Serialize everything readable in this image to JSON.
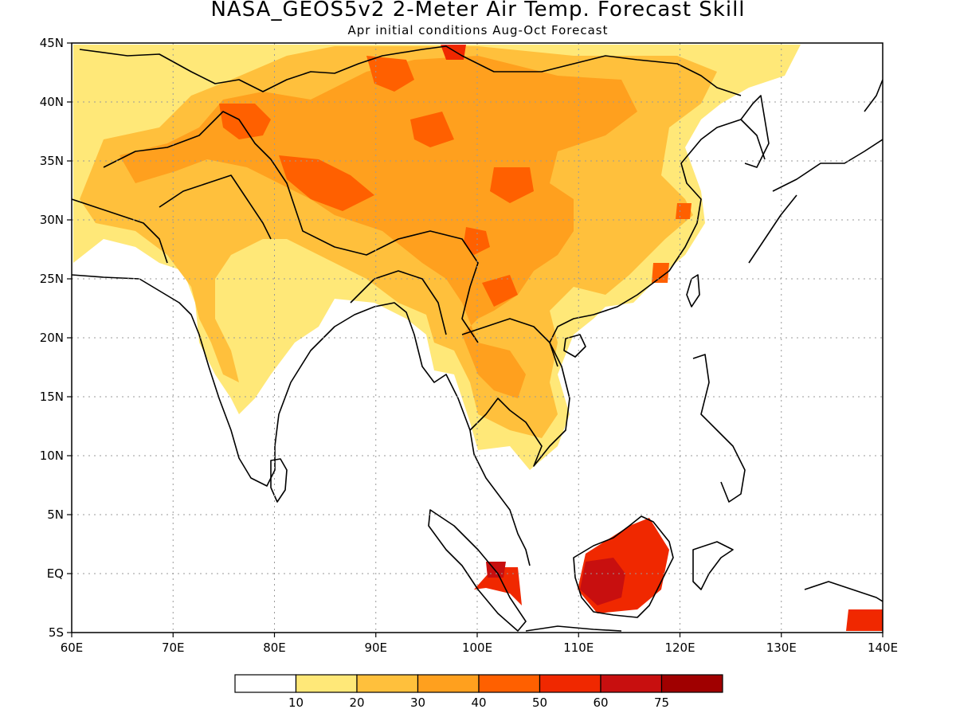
{
  "title": "NASA_GEOS5v2 2-Meter Air Temp. Forecast Skill",
  "subtitle": "Apr initial conditions  Aug-Oct Forecast",
  "map": {
    "lon_range": [
      60,
      140
    ],
    "lat_range": [
      -5,
      45
    ],
    "lon_ticks": [
      "60E",
      "70E",
      "80E",
      "90E",
      "100E",
      "110E",
      "120E",
      "130E",
      "140E"
    ],
    "lat_ticks": [
      "5S",
      "EQ",
      "5N",
      "10N",
      "15N",
      "20N",
      "25N",
      "30N",
      "35N",
      "40N",
      "45N"
    ],
    "grid": "dotted",
    "region": "South and East Asia, Indonesia"
  },
  "colorbar": {
    "labels": [
      "10",
      "20",
      "30",
      "40",
      "50",
      "60",
      "75"
    ],
    "colors": [
      "#ffffff",
      "#ffe878",
      "#ffc03c",
      "#ffa01e",
      "#ff6000",
      "#f02800",
      "#c80f0f",
      "#a00000"
    ]
  },
  "field_description": "Shaded forecast skill (percent)"
}
